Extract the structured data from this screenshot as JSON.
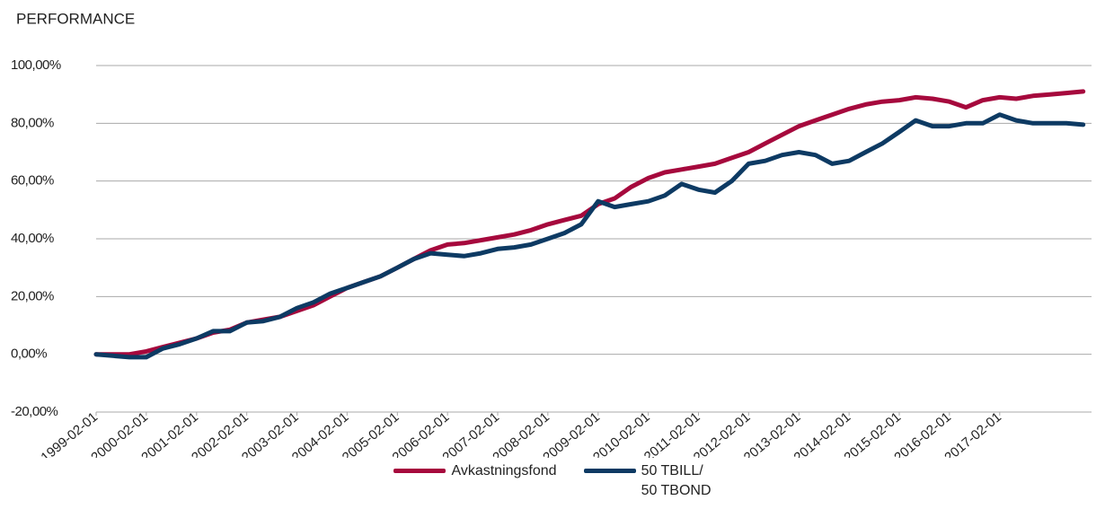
{
  "chart_data": {
    "type": "line",
    "title": "PERFORMANCE",
    "x": [
      "1999-02-01",
      "1999-06-01",
      "1999-10-01",
      "2000-02-01",
      "2000-06-01",
      "2000-10-01",
      "2001-02-01",
      "2001-06-01",
      "2001-10-01",
      "2002-02-01",
      "2002-06-01",
      "2002-10-01",
      "2003-02-01",
      "2003-06-01",
      "2003-10-01",
      "2004-02-01",
      "2004-06-01",
      "2004-10-01",
      "2005-02-01",
      "2005-06-01",
      "2005-10-01",
      "2006-02-01",
      "2006-06-01",
      "2006-10-01",
      "2007-02-01",
      "2007-06-01",
      "2007-10-01",
      "2008-02-01",
      "2008-06-01",
      "2008-10-01",
      "2009-02-01",
      "2009-06-01",
      "2009-10-01",
      "2010-02-01",
      "2010-06-01",
      "2010-10-01",
      "2011-02-01",
      "2011-06-01",
      "2011-10-01",
      "2012-02-01",
      "2012-06-01",
      "2012-10-01",
      "2013-02-01",
      "2013-06-01",
      "2013-10-01",
      "2014-02-01",
      "2014-06-01",
      "2014-10-01",
      "2015-02-01",
      "2015-06-01",
      "2015-10-01",
      "2016-02-01",
      "2016-06-01",
      "2016-10-01",
      "2017-02-01",
      "2017-06-01",
      "2017-10-01",
      "2018-02-01",
      "2018-06-01",
      "2018-10-01"
    ],
    "series": [
      {
        "name": "Avkastningsfond",
        "color": "#a6093d",
        "values": [
          0,
          0,
          0,
          1,
          2.5,
          4,
          5.5,
          7.5,
          8.5,
          11,
          12,
          13,
          15,
          17,
          20,
          23,
          25,
          27,
          30,
          33,
          36,
          38,
          38.5,
          39.5,
          40.5,
          41.5,
          43,
          45,
          46.5,
          48,
          52,
          54,
          58,
          61,
          63,
          64,
          65,
          66,
          68,
          70,
          73,
          76,
          79,
          81,
          83,
          85,
          86.5,
          87.5,
          88,
          89,
          88.5,
          87.5,
          85.5,
          88,
          89,
          88.5,
          89.5,
          90,
          90.5,
          91
        ]
      },
      {
        "name": "50 TBILL/\n50 TBOND",
        "color": "#0d3a63",
        "values": [
          0,
          -0.5,
          -1,
          -1,
          2,
          3.5,
          5.5,
          8,
          8,
          11,
          11.5,
          13,
          16,
          18,
          21,
          23,
          25,
          27,
          30,
          33,
          35,
          34.5,
          34,
          35,
          36.5,
          37,
          38,
          40,
          42,
          45,
          53,
          51,
          52,
          53,
          55,
          59,
          57,
          56,
          60,
          66,
          67,
          69,
          70,
          69,
          66,
          67,
          70,
          73,
          77,
          81,
          79,
          79,
          80,
          80,
          83,
          81,
          80,
          80,
          80,
          79.5
        ]
      }
    ],
    "xlim": [
      "1999-02-01",
      "2018-12-01"
    ],
    "xticks": [
      "1999-02-01",
      "2000-02-01",
      "2001-02-01",
      "2002-02-01",
      "2003-02-01",
      "2004-02-01",
      "2005-02-01",
      "2006-02-01",
      "2007-02-01",
      "2008-02-01",
      "2009-02-01",
      "2010-02-01",
      "2011-02-01",
      "2012-02-01",
      "2013-02-01",
      "2014-02-01",
      "2015-02-01",
      "2016-02-01",
      "2017-02-01"
    ],
    "ylim": [
      -20,
      100
    ],
    "yticks": [
      {
        "value": -20,
        "label": "-20,00%"
      },
      {
        "value": 0,
        "label": "0,00%"
      },
      {
        "value": 20,
        "label": "20,00%"
      },
      {
        "value": 40,
        "label": "40,00%"
      },
      {
        "value": 60,
        "label": "60,00%"
      },
      {
        "value": 80,
        "label": "80,00%"
      },
      {
        "value": 100,
        "label": "100,00%"
      }
    ],
    "grid": true,
    "legend": "bottom"
  }
}
